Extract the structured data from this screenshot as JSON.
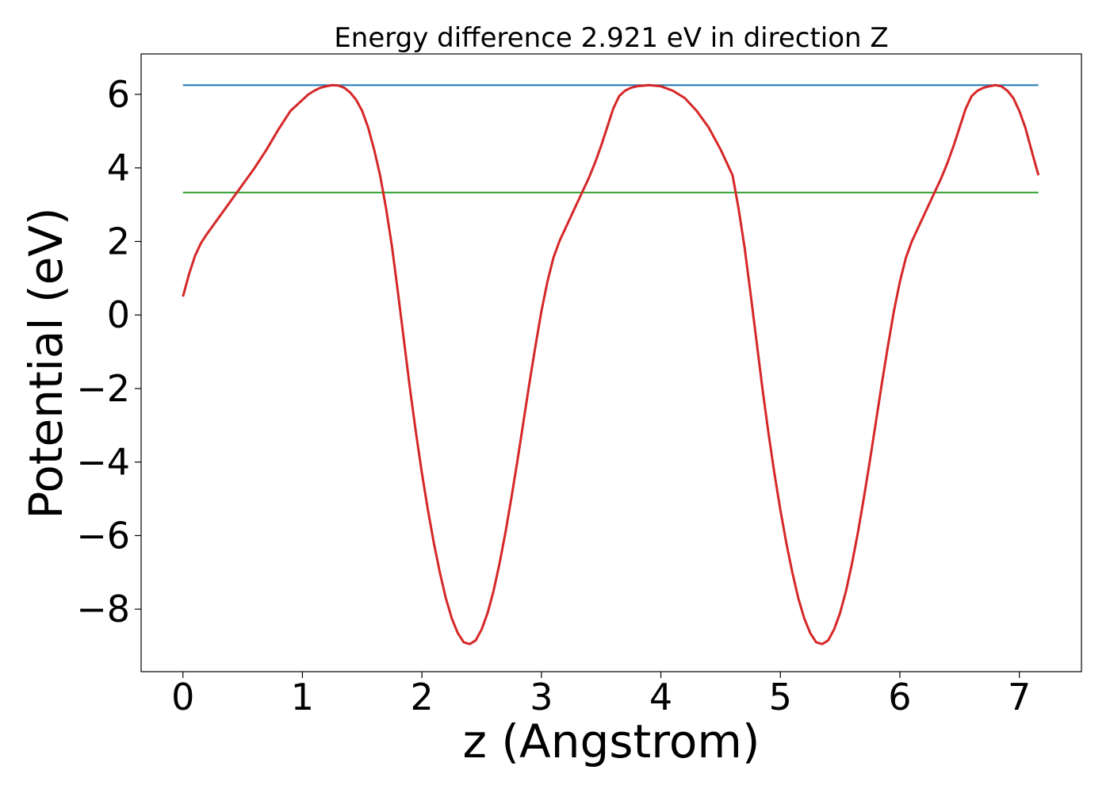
{
  "chart_data": {
    "type": "line",
    "title": "Energy difference 2.921 eV in direction Z",
    "xlabel": "z (Angstrom)",
    "ylabel": "Potential (eV)",
    "xlim": [
      -0.35,
      7.52
    ],
    "ylim": [
      -9.7,
      7.1
    ],
    "x_ticks": [
      0,
      1,
      2,
      3,
      4,
      5,
      6,
      7
    ],
    "x_tick_labels": [
      "0",
      "1",
      "2",
      "3",
      "4",
      "5",
      "6",
      "7"
    ],
    "y_ticks": [
      6,
      4,
      2,
      0,
      -2,
      -4,
      -6,
      -8
    ],
    "y_tick_labels": [
      "6",
      "4",
      "2",
      "0",
      "−2",
      "−4",
      "−6",
      "−8"
    ],
    "grid": false,
    "series": [
      {
        "color": "#d62728",
        "x": [
          0.0,
          0.05,
          0.1,
          0.15,
          0.2,
          0.3,
          0.4,
          0.5,
          0.6,
          0.7,
          0.8,
          0.9,
          1.0,
          1.05,
          1.1,
          1.15,
          1.2,
          1.25,
          1.3,
          1.35,
          1.4,
          1.45,
          1.5,
          1.55,
          1.6,
          1.65,
          1.7,
          1.75,
          1.8,
          1.85,
          1.9,
          1.95,
          2.0,
          2.05,
          2.1,
          2.15,
          2.2,
          2.25,
          2.3,
          2.35,
          2.4,
          2.45,
          2.5,
          2.55,
          2.6,
          2.65,
          2.7,
          2.75,
          2.8,
          2.85,
          2.9,
          2.95,
          3.0,
          3.05,
          3.1,
          3.15,
          3.2,
          3.25,
          3.3,
          3.35,
          3.4,
          3.45,
          3.5,
          3.55,
          3.6,
          3.65,
          3.7,
          3.75,
          3.8,
          3.9,
          4.0,
          4.1,
          4.2,
          4.3,
          4.4,
          4.5,
          4.6,
          4.65,
          4.7,
          4.75,
          4.8,
          4.85,
          4.9,
          4.95,
          5.0,
          5.05,
          5.1,
          5.15,
          5.2,
          5.25,
          5.3,
          5.35,
          5.4,
          5.45,
          5.5,
          5.55,
          5.6,
          5.65,
          5.7,
          5.75,
          5.8,
          5.85,
          5.9,
          5.95,
          6.0,
          6.05,
          6.1,
          6.15,
          6.2,
          6.25,
          6.3,
          6.35,
          6.4,
          6.45,
          6.5,
          6.55,
          6.6,
          6.65,
          6.7,
          6.75,
          6.8,
          6.85,
          6.9,
          6.95,
          7.0,
          7.05,
          7.1,
          7.16
        ],
        "values": [
          0.5,
          1.1,
          1.6,
          1.95,
          2.2,
          2.65,
          3.1,
          3.55,
          4.0,
          4.5,
          5.05,
          5.55,
          5.85,
          6.0,
          6.1,
          6.18,
          6.22,
          6.25,
          6.24,
          6.18,
          6.05,
          5.85,
          5.55,
          5.1,
          4.5,
          3.8,
          2.9,
          1.85,
          0.6,
          -0.7,
          -2.0,
          -3.2,
          -4.3,
          -5.3,
          -6.2,
          -7.0,
          -7.7,
          -8.25,
          -8.65,
          -8.9,
          -8.95,
          -8.85,
          -8.55,
          -8.1,
          -7.5,
          -6.75,
          -5.9,
          -4.95,
          -3.95,
          -2.9,
          -1.85,
          -0.85,
          0.1,
          0.9,
          1.55,
          2.0,
          2.35,
          2.7,
          3.05,
          3.4,
          3.75,
          4.15,
          4.6,
          5.1,
          5.6,
          5.95,
          6.1,
          6.18,
          6.22,
          6.25,
          6.22,
          6.1,
          5.9,
          5.55,
          5.1,
          4.5,
          3.8,
          2.9,
          1.85,
          0.6,
          -0.7,
          -2.0,
          -3.2,
          -4.3,
          -5.3,
          -6.2,
          -7.0,
          -7.7,
          -8.25,
          -8.65,
          -8.9,
          -8.95,
          -8.85,
          -8.55,
          -8.1,
          -7.5,
          -6.75,
          -5.9,
          -4.95,
          -3.95,
          -2.9,
          -1.85,
          -0.85,
          0.1,
          0.9,
          1.55,
          2.0,
          2.35,
          2.7,
          3.05,
          3.4,
          3.75,
          4.15,
          4.6,
          5.1,
          5.6,
          5.95,
          6.1,
          6.18,
          6.22,
          6.25,
          6.22,
          6.1,
          5.9,
          5.55,
          5.1,
          4.5,
          3.8
        ]
      }
    ],
    "hlines": [
      {
        "color": "#1f77b4",
        "y": 6.25,
        "xmin": 0.0,
        "xmax": 7.16
      },
      {
        "color": "#2ca02c",
        "y": 3.33,
        "xmin": 0.0,
        "xmax": 7.16
      }
    ]
  }
}
